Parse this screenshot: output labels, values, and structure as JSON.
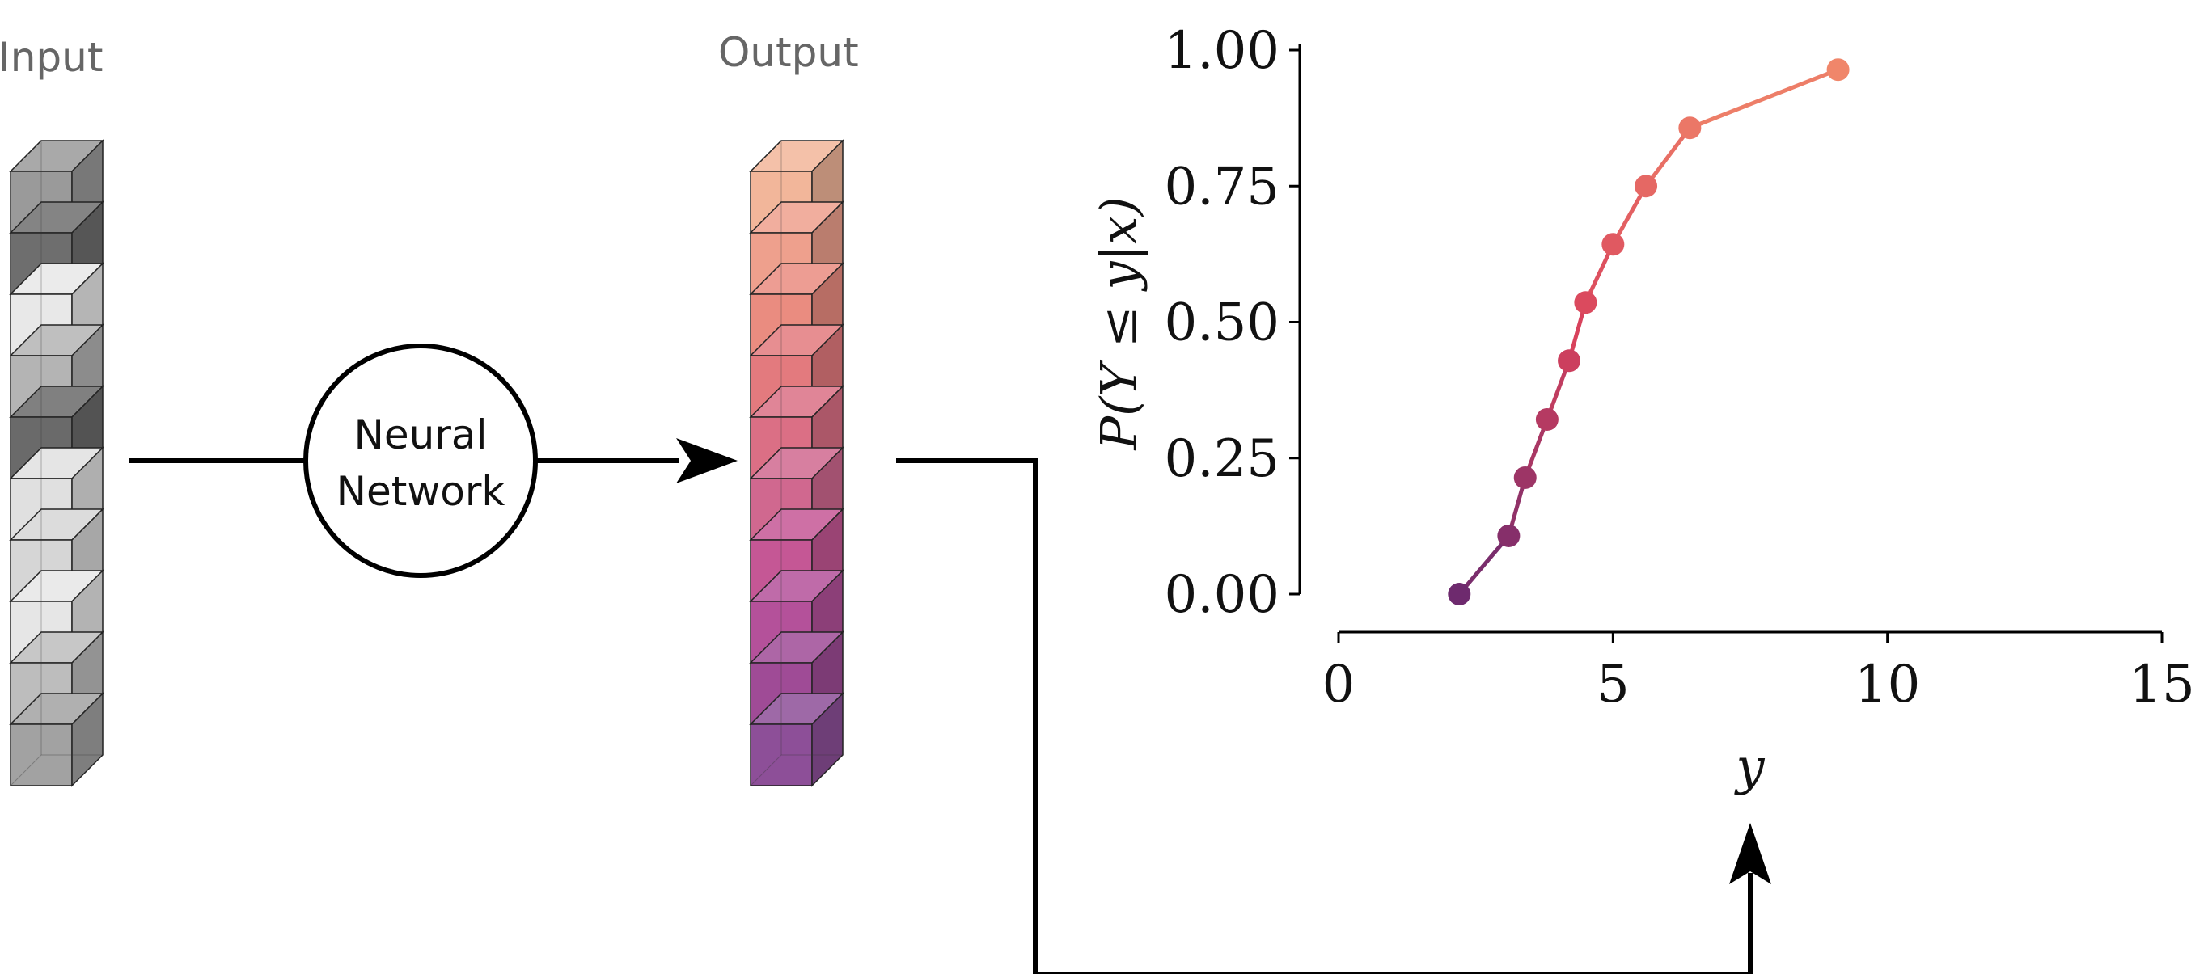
{
  "labels": {
    "input": "Input",
    "output": "Output",
    "nn_line1": "Neural",
    "nn_line2": "Network"
  },
  "input_stack": {
    "cells": 10,
    "shades": [
      "#9a9a9a",
      "#6e6e6e",
      "#e8e8e8",
      "#b4b4b4",
      "#6a6a6a",
      "#e0e0e0",
      "#d6d6d6",
      "#e6e6e6",
      "#bdbdbd",
      "#a2a2a2"
    ]
  },
  "output_stack": {
    "cells": 10,
    "shades": [
      "#f2b69a",
      "#eea08d",
      "#ea8c80",
      "#e37a7e",
      "#db6f85",
      "#d0688f",
      "#c55795",
      "#b4519a",
      "#9f4b96",
      "#8d4f98"
    ]
  },
  "colors": {
    "arrow": "#000000",
    "curve_low": "#6e2a6e",
    "curve_high": "#f0866a"
  },
  "chart_data": {
    "type": "line",
    "xlabel": "y",
    "ylabel": "P(Y ≤ y|x)",
    "xlim": [
      0,
      15
    ],
    "ylim": [
      0,
      1
    ],
    "xticks": [
      "0",
      "5",
      "10",
      "15"
    ],
    "yticks": [
      "0.00",
      "0.25",
      "0.50",
      "0.75",
      "1.00"
    ],
    "grid": false,
    "x": [
      2.2,
      3.1,
      3.4,
      3.8,
      4.2,
      4.5,
      5.0,
      5.6,
      6.4,
      9.1
    ],
    "y": [
      0.0,
      0.107,
      0.214,
      0.321,
      0.429,
      0.536,
      0.643,
      0.75,
      0.857,
      0.964
    ]
  }
}
